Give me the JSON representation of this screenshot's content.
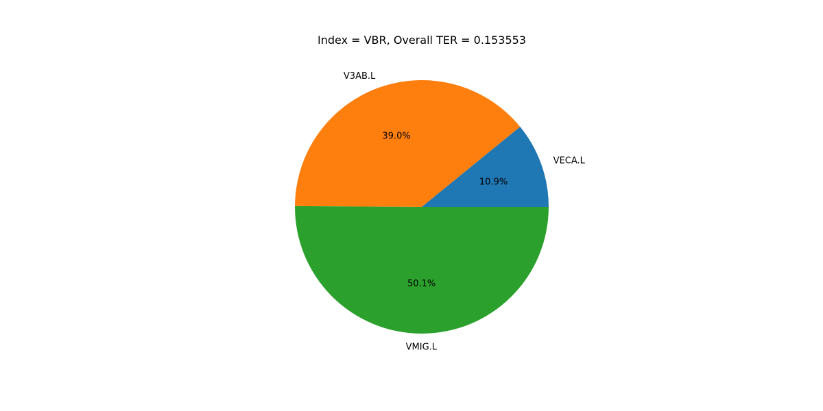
{
  "chart_data": {
    "type": "pie",
    "title": "Index = VBR, Overall TER = 0.153553",
    "slices": [
      {
        "label": "VECA.L",
        "percent": 10.9,
        "percent_label": "10.9%",
        "color": "#1f77b4"
      },
      {
        "label": "V3AB.L",
        "percent": 39.0,
        "percent_label": "39.0%",
        "color": "#ff7f0e"
      },
      {
        "label": "VMIG.L",
        "percent": 50.1,
        "percent_label": "50.1%",
        "color": "#2ca02c"
      }
    ],
    "start_angle_deg": 0,
    "direction": "counterclockwise",
    "legend": "none",
    "grid": false
  }
}
